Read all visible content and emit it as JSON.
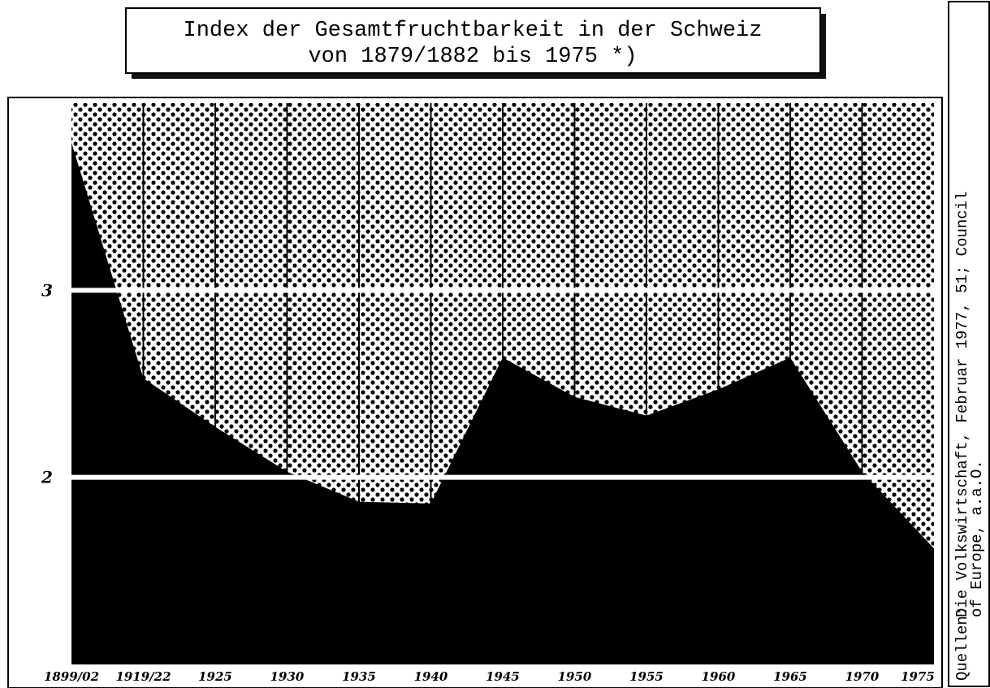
{
  "chart_data": {
    "type": "area",
    "title": "Index der Gesamtfruchtbarkeit in der Schweiz",
    "subtitle": "von 1879/1882 bis 1975 *)",
    "categories": [
      "1899/02",
      "1919/22",
      "1925",
      "1930",
      "1935",
      "1940",
      "1945",
      "1950",
      "1955",
      "1960",
      "1965",
      "1970",
      "1975"
    ],
    "values": [
      3.79,
      2.53,
      2.27,
      2.03,
      1.87,
      1.86,
      2.64,
      2.43,
      2.33,
      2.47,
      2.64,
      2.03,
      1.62
    ],
    "color": "#000000",
    "ylim": [
      1,
      4
    ],
    "yticks": [
      2,
      3
    ],
    "grid": true,
    "source": {
      "label": "Quellen:",
      "lines": [
        "Die Volkswirtschaft, Februar 1977, 51; Council",
        "of Europe, a.a.O."
      ]
    }
  }
}
